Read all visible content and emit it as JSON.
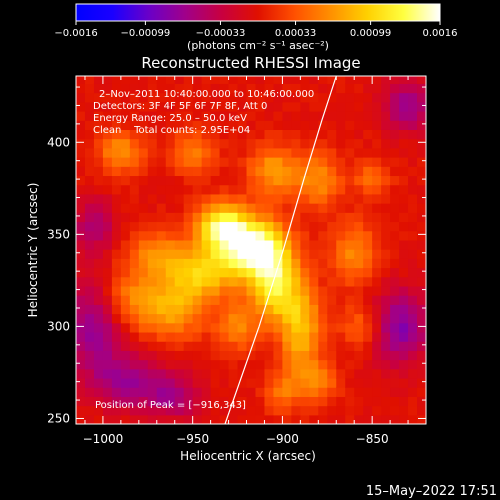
{
  "chart_data": {
    "type": "heatmap",
    "title": "Reconstructed RHESSI Image",
    "xlabel": "Heliocentric X (arcsec)",
    "ylabel": "Heliocentric Y (arcsec)",
    "xlim": [
      -1015,
      -820
    ],
    "ylim": [
      247,
      436
    ],
    "x_ticks": [
      -1000,
      -950,
      -900,
      -850
    ],
    "x_tick_labels": [
      "−1000",
      "−950",
      "−900",
      "−850"
    ],
    "y_ticks": [
      250,
      300,
      350,
      400
    ],
    "y_tick_labels": [
      "250",
      "300",
      "350",
      "400"
    ],
    "colorbar": {
      "range": [
        -0.0016,
        0.0016
      ],
      "ticks": [
        -0.0016,
        -0.00099,
        -0.00033,
        0.00033,
        0.00099,
        0.0016
      ],
      "tick_labels": [
        "−0.0016",
        "−0.00099",
        "−0.00033",
        "0.00033",
        "0.00099",
        "0.0016"
      ],
      "unit_label": "(photons cm⁻² s⁻¹ asec⁻²)",
      "colormap": [
        "#0000ff",
        "#1a00ff",
        "#6a00c8",
        "#a0008a",
        "#c80040",
        "#e01000",
        "#ff5000",
        "#ff9000",
        "#ffd000",
        "#ffff40",
        "#ffffff"
      ]
    },
    "info": [
      "2–Nov–2011 10:40:00.000 to 10:46:00.000",
      "Detectors: 3F 4F 5F 6F 7F 8F, Att 0",
      "Energy Range: 25.0 – 50.0 keV",
      "Clean    Total counts: 2.95E+04"
    ],
    "peak_label": "Position of Peak = [−916,343]",
    "peak": [
      -916,
      343
    ],
    "grid": false,
    "limb_curve": [
      [
        -932,
        247
      ],
      [
        -913,
        300
      ],
      [
        -900,
        340
      ],
      [
        -888,
        380
      ],
      [
        -878,
        412
      ],
      [
        -870,
        436
      ]
    ],
    "blobs": [
      {
        "x": -916,
        "y": 343,
        "sx": 13,
        "sy": 11,
        "a": 1.0
      },
      {
        "x": -934,
        "y": 355,
        "sx": 10,
        "sy": 9,
        "a": 0.75
      },
      {
        "x": -905,
        "y": 322,
        "sx": 9,
        "sy": 13,
        "a": 0.7
      },
      {
        "x": -945,
        "y": 330,
        "sx": 14,
        "sy": 10,
        "a": 0.55
      },
      {
        "x": -890,
        "y": 300,
        "sx": 8,
        "sy": 18,
        "a": 0.55
      },
      {
        "x": -960,
        "y": 310,
        "sx": 13,
        "sy": 11,
        "a": 0.45
      },
      {
        "x": -970,
        "y": 340,
        "sx": 11,
        "sy": 9,
        "a": 0.35
      },
      {
        "x": -985,
        "y": 315,
        "sx": 12,
        "sy": 12,
        "a": 0.35
      },
      {
        "x": -990,
        "y": 395,
        "sx": 9,
        "sy": 8,
        "a": 0.4
      },
      {
        "x": -950,
        "y": 395,
        "sx": 9,
        "sy": 8,
        "a": 0.35
      },
      {
        "x": -905,
        "y": 385,
        "sx": 10,
        "sy": 10,
        "a": 0.42
      },
      {
        "x": -880,
        "y": 380,
        "sx": 9,
        "sy": 11,
        "a": 0.38
      },
      {
        "x": -860,
        "y": 340,
        "sx": 9,
        "sy": 12,
        "a": 0.38
      },
      {
        "x": -855,
        "y": 300,
        "sx": 9,
        "sy": 9,
        "a": 0.3
      },
      {
        "x": -880,
        "y": 270,
        "sx": 8,
        "sy": 8,
        "a": 0.3
      },
      {
        "x": -850,
        "y": 380,
        "sx": 7,
        "sy": 7,
        "a": 0.28
      },
      {
        "x": -925,
        "y": 300,
        "sx": 8,
        "sy": 9,
        "a": 0.35
      },
      {
        "x": -900,
        "y": 265,
        "sx": 7,
        "sy": 8,
        "a": 0.28
      }
    ],
    "negative_blobs": [
      {
        "x": -1005,
        "y": 300,
        "sx": 12,
        "sy": 18,
        "a": 0.45
      },
      {
        "x": -985,
        "y": 270,
        "sx": 14,
        "sy": 10,
        "a": 0.4
      },
      {
        "x": -835,
        "y": 300,
        "sx": 12,
        "sy": 14,
        "a": 0.5
      },
      {
        "x": -830,
        "y": 420,
        "sx": 10,
        "sy": 10,
        "a": 0.4
      },
      {
        "x": -960,
        "y": 262,
        "sx": 10,
        "sy": 8,
        "a": 0.35
      },
      {
        "x": -1005,
        "y": 355,
        "sx": 8,
        "sy": 10,
        "a": 0.35
      }
    ]
  },
  "footer": {
    "date": "15–May–2022 17:51"
  }
}
